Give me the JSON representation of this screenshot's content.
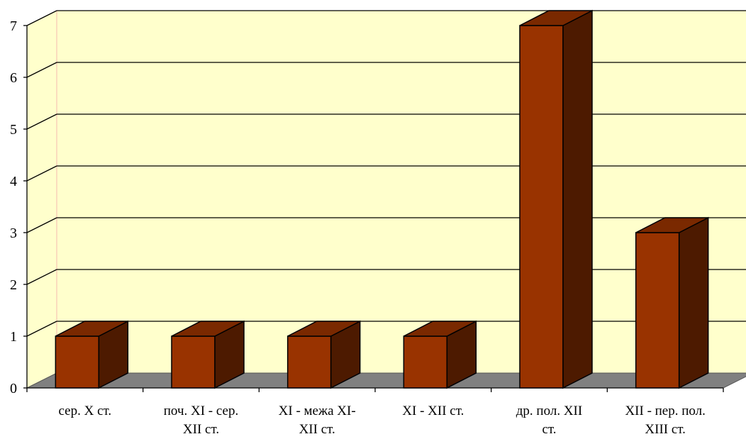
{
  "chart_data": {
    "type": "bar",
    "title": "",
    "xlabel": "",
    "ylabel": "",
    "categories": [
      [
        "сер. X ст."
      ],
      [
        "поч. XI - сер.",
        "XII ст."
      ],
      [
        "XI - межа XI-",
        "XII ст."
      ],
      [
        "XI - XII ст."
      ],
      [
        "др. пол. XII",
        "ст."
      ],
      [
        "XII - пер. пол.",
        "XIII ст."
      ]
    ],
    "values": [
      1,
      1,
      1,
      1,
      7,
      3
    ],
    "ylim": [
      0,
      7
    ],
    "y_ticks": [
      "0",
      "1",
      "2",
      "3",
      "4",
      "5",
      "6",
      "7"
    ],
    "grid": true,
    "style": "3d-column",
    "colors": {
      "wall": "#ffffcc",
      "floor": "#808080",
      "bar_front": "#993300",
      "bar_side": "#4d1a00",
      "bar_top": "#7a2900",
      "wall_edge": "#f4b8b0"
    }
  }
}
